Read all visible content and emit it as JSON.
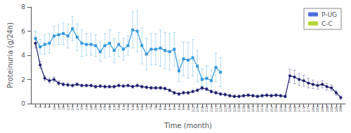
{
  "chart_data": {
    "type": "line",
    "xlabel": "Time (month)",
    "ylabel": "Proteinuria (g/24h)",
    "xlim": [
      -3,
      201
    ],
    "xticks": [
      0,
      3,
      6,
      9,
      12,
      15,
      18,
      21,
      24,
      27,
      30,
      33,
      36,
      39,
      42,
      45,
      48,
      51,
      54,
      57,
      60,
      63,
      66,
      69,
      72,
      75,
      78,
      81,
      84,
      87,
      90,
      93,
      96,
      99,
      102,
      105,
      108,
      111,
      114,
      117,
      120,
      123,
      126,
      129,
      132,
      135,
      138,
      141,
      144,
      147,
      150,
      153,
      156,
      159,
      162,
      165,
      168,
      171,
      174,
      177,
      180,
      183,
      186,
      189,
      192,
      195,
      198
    ],
    "ylim": [
      0,
      8
    ],
    "yticks": [
      0,
      2,
      4,
      6,
      8
    ],
    "grid": false,
    "legend": "upper right",
    "series": [
      {
        "name": "P-UG",
        "color": "#3399dd",
        "marker": "square",
        "x": [
          0,
          3,
          6,
          9,
          12,
          15,
          18,
          21,
          24,
          27,
          30,
          33,
          36,
          39,
          42,
          45,
          48,
          51,
          54,
          57,
          60,
          63,
          66,
          69,
          72,
          75,
          78,
          81,
          84,
          87,
          90,
          93,
          96,
          99,
          102,
          105,
          108,
          111,
          114,
          117,
          120
        ],
        "values": [
          5.4,
          4.7,
          4.9,
          5.0,
          5.6,
          5.7,
          5.8,
          5.6,
          6.2,
          5.5,
          5.0,
          4.9,
          4.9,
          4.8,
          4.3,
          4.8,
          5.0,
          4.4,
          4.9,
          4.5,
          4.8,
          6.1,
          6.0,
          4.8,
          4.1,
          4.5,
          4.5,
          4.6,
          4.4,
          4.3,
          4.5,
          2.7,
          3.7,
          3.6,
          3.8,
          3.1,
          2.0,
          2.1,
          1.9,
          3.0,
          2.6
        ],
        "errors": [
          0.6,
          0.6,
          0.8,
          0.8,
          0.8,
          0.8,
          0.9,
          1.0,
          1.0,
          1.1,
          1.1,
          0.9,
          0.9,
          0.9,
          0.8,
          1.0,
          1.1,
          1.0,
          1.0,
          0.9,
          0.8,
          1.5,
          1.7,
          1.5,
          1.3,
          1.3,
          1.3,
          1.5,
          1.5,
          1.5,
          1.4,
          0.9,
          1.4,
          1.5,
          1.5,
          1.3,
          0.9,
          1.0,
          0.9,
          1.2,
          1.2
        ]
      },
      {
        "name": "C-C",
        "color": "#1a1a6e",
        "marker": "circle",
        "x": [
          0,
          3,
          6,
          9,
          12,
          15,
          18,
          21,
          24,
          27,
          30,
          33,
          36,
          39,
          42,
          45,
          48,
          51,
          54,
          57,
          60,
          63,
          66,
          69,
          72,
          75,
          78,
          81,
          84,
          87,
          90,
          93,
          96,
          99,
          102,
          105,
          108,
          111,
          114,
          117,
          120,
          123,
          126,
          129,
          132,
          135,
          138,
          141,
          144,
          147,
          150,
          153,
          156,
          159,
          162,
          165,
          168,
          171,
          174,
          177,
          180,
          183,
          186,
          189,
          192,
          195,
          198
        ],
        "values": [
          5.0,
          3.2,
          2.1,
          1.9,
          2.0,
          1.7,
          1.6,
          1.55,
          1.5,
          1.6,
          1.5,
          1.5,
          1.5,
          1.4,
          1.45,
          1.4,
          1.4,
          1.4,
          1.5,
          1.45,
          1.5,
          1.4,
          1.5,
          1.4,
          1.35,
          1.3,
          1.3,
          1.3,
          1.25,
          1.1,
          0.9,
          0.8,
          0.9,
          0.9,
          1.0,
          1.1,
          1.3,
          1.2,
          1.0,
          0.9,
          0.8,
          0.75,
          0.65,
          0.6,
          0.6,
          0.65,
          0.7,
          0.65,
          0.6,
          0.65,
          0.7,
          0.65,
          0.7,
          0.65,
          0.6,
          2.3,
          2.2,
          2.0,
          1.9,
          1.7,
          1.6,
          1.5,
          1.6,
          1.4,
          1.3,
          0.9,
          0.5
        ],
        "errors": [
          0.4,
          0.3,
          0.2,
          0.2,
          0.2,
          0.18,
          0.15,
          0.15,
          0.12,
          0.12,
          0.12,
          0.12,
          0.12,
          0.12,
          0.12,
          0.12,
          0.12,
          0.12,
          0.12,
          0.12,
          0.12,
          0.12,
          0.12,
          0.12,
          0.12,
          0.12,
          0.12,
          0.12,
          0.12,
          0.12,
          0.12,
          0.12,
          0.12,
          0.12,
          0.12,
          0.12,
          0.12,
          0.12,
          0.12,
          0.12,
          0.12,
          0.12,
          0.12,
          0.12,
          0.12,
          0.12,
          0.12,
          0.12,
          0.12,
          0.12,
          0.12,
          0.12,
          0.12,
          0.12,
          0.12,
          0.55,
          0.55,
          0.5,
          0.45,
          0.4,
          0.35,
          0.3,
          0.3,
          0.28,
          0.25,
          0.2,
          0.15
        ]
      }
    ]
  }
}
